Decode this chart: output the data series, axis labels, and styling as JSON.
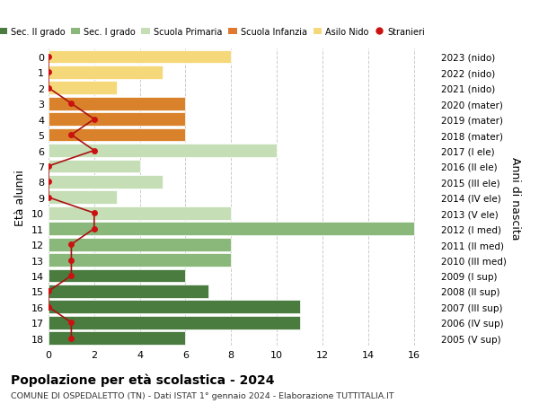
{
  "ages": [
    18,
    17,
    16,
    15,
    14,
    13,
    12,
    11,
    10,
    9,
    8,
    7,
    6,
    5,
    4,
    3,
    2,
    1,
    0
  ],
  "right_labels": [
    "2005 (V sup)",
    "2006 (IV sup)",
    "2007 (III sup)",
    "2008 (II sup)",
    "2009 (I sup)",
    "2010 (III med)",
    "2011 (II med)",
    "2012 (I med)",
    "2013 (V ele)",
    "2014 (IV ele)",
    "2015 (III ele)",
    "2016 (II ele)",
    "2017 (I ele)",
    "2018 (mater)",
    "2019 (mater)",
    "2020 (mater)",
    "2021 (nido)",
    "2022 (nido)",
    "2023 (nido)"
  ],
  "bar_values": [
    6,
    11,
    11,
    7,
    6,
    8,
    8,
    16,
    8,
    3,
    5,
    4,
    10,
    6,
    6,
    6,
    3,
    5,
    8
  ],
  "bar_colors": [
    "#4a7c3f",
    "#4a7c3f",
    "#4a7c3f",
    "#4a7c3f",
    "#4a7c3f",
    "#8ab87a",
    "#8ab87a",
    "#8ab87a",
    "#c5deb5",
    "#c5deb5",
    "#c5deb5",
    "#c5deb5",
    "#c5deb5",
    "#d9822b",
    "#d9822b",
    "#d9822b",
    "#f5d87a",
    "#f5d87a",
    "#f5d87a"
  ],
  "stranieri_values": [
    1,
    1,
    0,
    0,
    1,
    1,
    1,
    2,
    2,
    0,
    0,
    0,
    2,
    1,
    2,
    1,
    0,
    0,
    0
  ],
  "legend_labels": [
    "Sec. II grado",
    "Sec. I grado",
    "Scuola Primaria",
    "Scuola Infanzia",
    "Asilo Nido",
    "Stranieri"
  ],
  "legend_colors": [
    "#4a7c3f",
    "#8ab87a",
    "#c5deb5",
    "#e07830",
    "#f5d87a",
    "#cc1111"
  ],
  "ylabel_left": "Età alunni",
  "ylabel_right": "Anni di nascita",
  "title": "Popolazione per età scolastica - 2024",
  "subtitle": "COMUNE DI OSPEDALETTO (TN) - Dati ISTAT 1° gennaio 2024 - Elaborazione TUTTITALIA.IT",
  "xlim": [
    0,
    17
  ],
  "xticks": [
    0,
    2,
    4,
    6,
    8,
    10,
    12,
    14,
    16
  ],
  "background_color": "#ffffff",
  "grid_color": "#cccccc"
}
